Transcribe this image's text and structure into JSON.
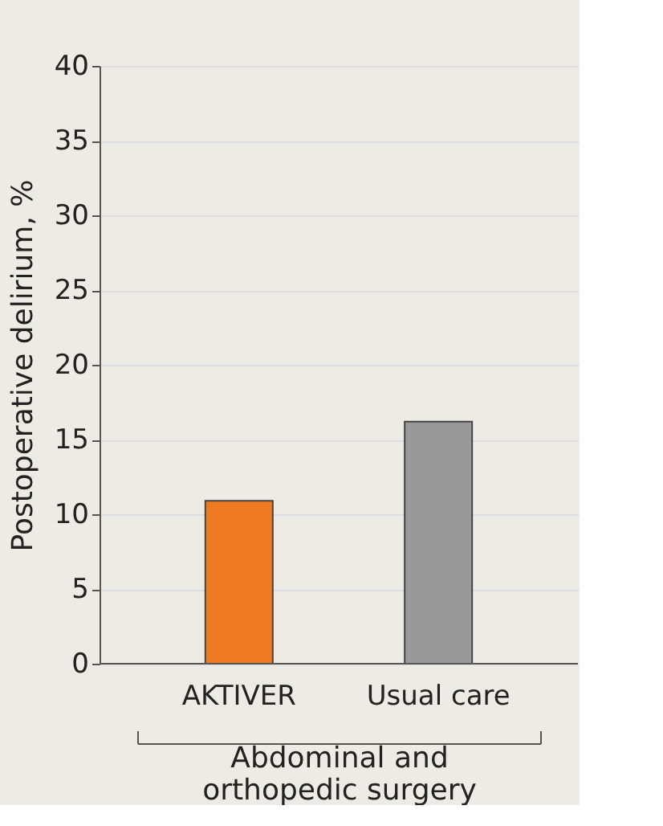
{
  "chart_data": {
    "type": "bar",
    "categories": [
      "AKTIVER",
      "Usual care"
    ],
    "values": [
      10.9,
      16.2
    ],
    "colors": [
      "#f07a21",
      "#999999"
    ],
    "ylabel": "Postoperative delirium, %",
    "xlabel": "Abdominal and orthopedic surgery",
    "ylim": [
      0,
      40
    ],
    "yticks": [
      0,
      5,
      10,
      15,
      20,
      25,
      30,
      35,
      40
    ],
    "grid": "y"
  }
}
